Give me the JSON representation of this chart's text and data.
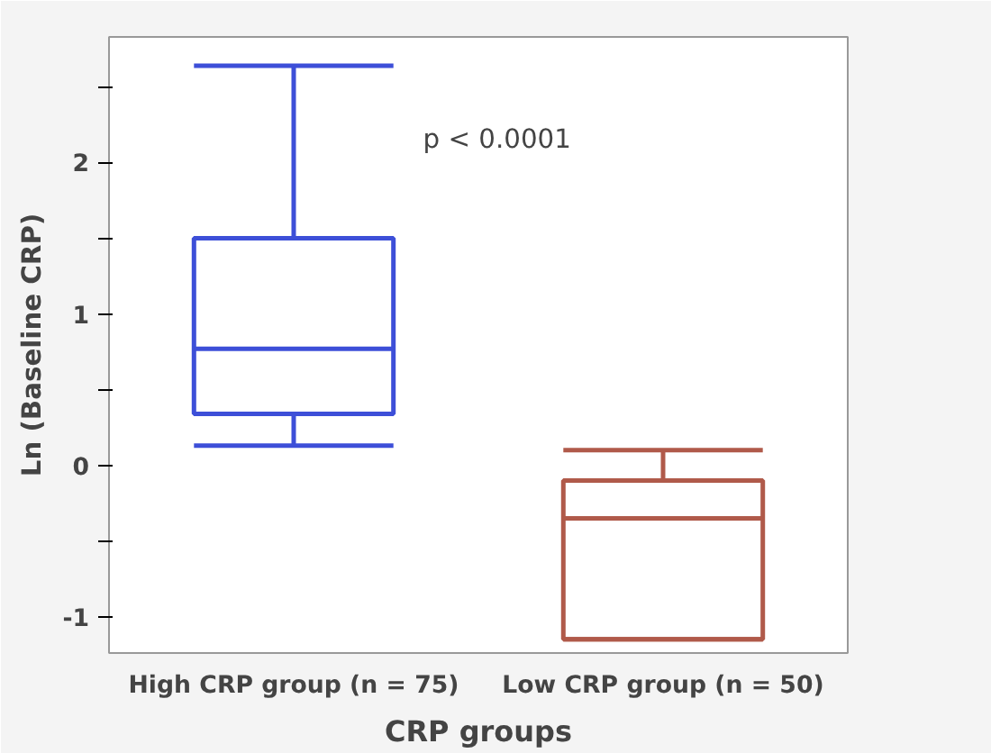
{
  "chart_data": {
    "type": "box",
    "xlabel": "CRP groups",
    "ylabel": "Ln (Baseline CRP)",
    "categories": [
      "High CRP group (n = 75)",
      "Low CRP group (n = 50)"
    ],
    "series": [
      {
        "color": "#3d4fd8",
        "boxes": [
          {
            "low": 0.13,
            "q1": 0.34,
            "median": 0.77,
            "q3": 1.5,
            "high": 2.64
          },
          null
        ]
      },
      {
        "color": "#b05a4a",
        "boxes": [
          null,
          {
            "low": -1.15,
            "q1": -1.15,
            "median": -0.35,
            "q3": -0.1,
            "high": 0.1
          }
        ]
      }
    ],
    "ylim": [
      -1.24,
      2.83
    ],
    "yticks": [
      -1,
      {
        "value": -0.5,
        "label": null
      },
      0,
      {
        "value": 0.5,
        "label": null
      },
      1,
      {
        "value": 1.5,
        "label": null
      },
      2,
      {
        "value": 2.5,
        "label": null
      }
    ],
    "annotations": [
      "p < 0.0001"
    ],
    "grid": false
  }
}
